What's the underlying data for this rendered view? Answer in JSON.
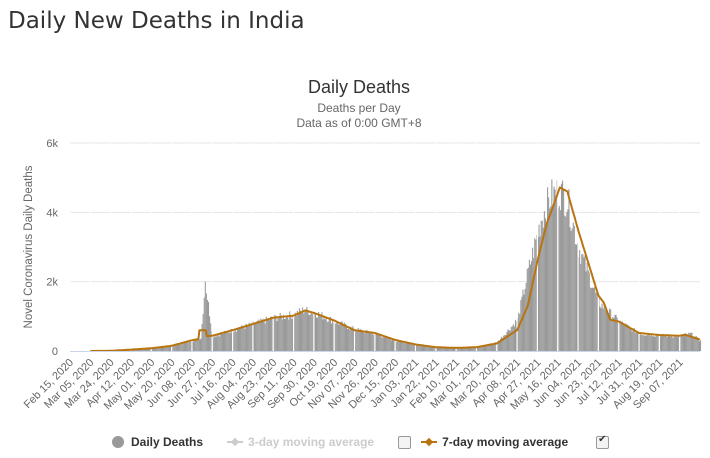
{
  "page": {
    "title": "Daily New Deaths in India"
  },
  "legend": {
    "items": [
      {
        "label": "Daily Deaths",
        "color": "#999999",
        "active": true,
        "text_color": "#333333"
      },
      {
        "label": "3-day moving average",
        "color": "#cccccc",
        "active": false,
        "text_color": "#cccccc",
        "checked": false
      },
      {
        "label": "7-day moving average",
        "color": "#b8740f",
        "active": true,
        "text_color": "#333333",
        "checked": true
      }
    ]
  },
  "colors": {
    "bars": "#999999",
    "ma7": "#b8740f",
    "grid": "#e6e6e6",
    "axis": "#ccd6eb"
  },
  "chart_data": {
    "type": "bar",
    "title": "Daily Deaths",
    "subtitle": "Deaths per Day",
    "subtitle2": "Data as of 0:00 GMT+8",
    "xlabel": "",
    "ylabel": "Novel Coronavirus Daily Deaths",
    "ylim": [
      0,
      6000
    ],
    "yticks": [
      0,
      2000,
      4000,
      6000
    ],
    "ytick_labels": [
      "0",
      "2k",
      "4k",
      "6k"
    ],
    "grid": true,
    "legend_position": "bottom",
    "x_start": "Feb 15, 2020",
    "x_end": "Sep 25, 2021",
    "xtick_labels": [
      "Feb 15, 2020",
      "Mar 05, 2020",
      "Mar 24, 2020",
      "Apr 12, 2020",
      "May 01, 2020",
      "May 20, 2020",
      "Jun 08, 2020",
      "Jun 27, 2020",
      "Jul 16, 2020",
      "Aug 04, 2020",
      "Aug 23, 2020",
      "Sep 11, 2020",
      "Sep 30, 2020",
      "Oct 19, 2020",
      "Nov 07, 2020",
      "Nov 26, 2020",
      "Dec 15, 2020",
      "Jan 03, 2021",
      "Jan 22, 2021",
      "Feb 10, 2021",
      "Mar 01, 2021",
      "Mar 20, 2021",
      "Apr 08, 2021",
      "Apr 27, 2021",
      "May 16, 2021",
      "Jun 04, 2021",
      "Jun 23, 2021",
      "Jul 12, 2021",
      "Jul 31, 2021",
      "Aug 19, 2021",
      "Sep 07, 2021"
    ],
    "series": [
      {
        "name": "Daily Deaths",
        "kind": "bar",
        "anchor_day_index": [
          0,
          19,
          38,
          57,
          76,
          95,
          114,
          122,
          126,
          133,
          152,
          171,
          190,
          209,
          218,
          228,
          247,
          266,
          285,
          304,
          323,
          342,
          361,
          380,
          399,
          418,
          428,
          437,
          440,
          449,
          458,
          465,
          475,
          494,
          513,
          532,
          551,
          570,
          580,
          589
        ],
        "anchor_values": [
          0,
          0,
          5,
          40,
          80,
          150,
          300,
          380,
          2000,
          420,
          600,
          780,
          950,
          1050,
          1180,
          1120,
          850,
          620,
          500,
          300,
          180,
          120,
          100,
          120,
          250,
          900,
          2300,
          3400,
          3800,
          4450,
          4600,
          4300,
          3000,
          1400,
          850,
          500,
          450,
          430,
          500,
          290
        ]
      },
      {
        "name": "7-day moving average",
        "kind": "line",
        "anchor_day_index": [
          0,
          19,
          38,
          57,
          76,
          95,
          114,
          120,
          121,
          127,
          128,
          133,
          152,
          171,
          190,
          209,
          220,
          228,
          247,
          266,
          285,
          304,
          323,
          342,
          361,
          380,
          399,
          418,
          428,
          437,
          446,
          452,
          458,
          465,
          475,
          494,
          499,
          505,
          513,
          532,
          551,
          570,
          575,
          589
        ],
        "anchor_values": [
          0,
          0,
          5,
          40,
          80,
          150,
          310,
          340,
          600,
          600,
          430,
          440,
          600,
          780,
          960,
          1020,
          1170,
          1100,
          880,
          600,
          520,
          320,
          190,
          110,
          90,
          110,
          220,
          600,
          1300,
          2600,
          3700,
          4200,
          4720,
          4600,
          3500,
          1600,
          1400,
          900,
          850,
          520,
          460,
          440,
          470,
          330
        ]
      }
    ]
  }
}
